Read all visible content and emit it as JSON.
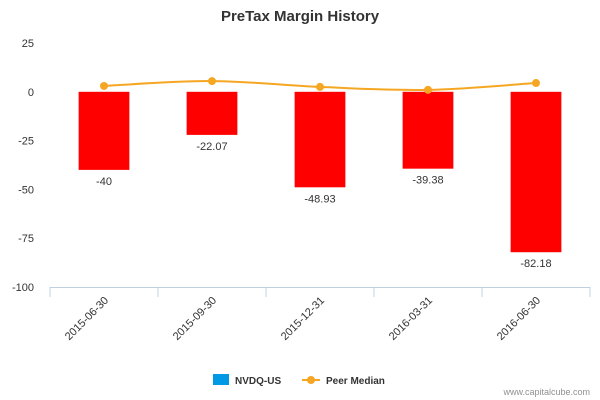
{
  "chart_data": {
    "type": "bar",
    "title": "PreTax Margin History",
    "categories": [
      "2015-06-30",
      "2015-09-30",
      "2015-12-31",
      "2016-03-31",
      "2016-06-30"
    ],
    "series": [
      {
        "name": "NVDQ-US",
        "type": "bar",
        "values": [
          -40,
          -22.07,
          -48.93,
          -39.38,
          -82.18
        ],
        "data_labels": [
          "-40",
          "-22.07",
          "-48.93",
          "-39.38",
          "-82.18"
        ],
        "bar_color": "#ff0000",
        "legend_color": "#0099e6"
      },
      {
        "name": "Peer Median",
        "type": "line",
        "values": [
          3,
          5.5,
          2.5,
          1,
          4.5
        ],
        "color": "#f5a623"
      }
    ],
    "yticks": [
      25,
      0,
      -25,
      -50,
      -75,
      -100
    ],
    "ytick_labels": [
      "25",
      "0",
      "-25",
      "-50",
      "-75",
      "-100"
    ],
    "ylim": [
      -100,
      25
    ],
    "legend_position": "bottom-center",
    "xlabel": "",
    "ylabel": ""
  },
  "credit": "www.capitalcube.com"
}
